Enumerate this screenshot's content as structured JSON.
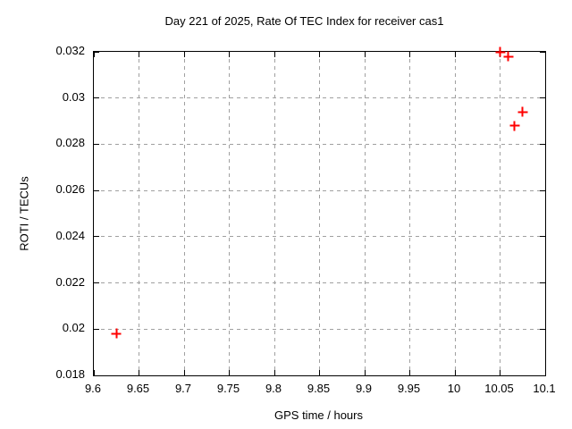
{
  "chart_data": {
    "type": "scatter",
    "title": "Day 221 of 2025, Rate Of TEC Index for receiver cas1",
    "xlabel": "GPS time / hours",
    "ylabel": "ROTI / TECUs",
    "xlim": [
      9.6,
      10.1
    ],
    "ylim": [
      0.018,
      0.032
    ],
    "xticks": [
      9.6,
      9.65,
      9.7,
      9.75,
      9.8,
      9.85,
      9.9,
      9.95,
      10,
      10.05,
      10.1
    ],
    "xtick_labels": [
      "9.6",
      "9.65",
      "9.7",
      "9.75",
      "9.8",
      "9.85",
      "9.9",
      "9.95",
      "10",
      "10.05",
      "10.1"
    ],
    "yticks": [
      0.018,
      0.02,
      0.022,
      0.024,
      0.026,
      0.028,
      0.03,
      0.032
    ],
    "ytick_labels": [
      "0.018",
      "0.02",
      "0.022",
      "0.024",
      "0.026",
      "0.028",
      "0.03",
      "0.032"
    ],
    "grid": true,
    "legend": "none",
    "marker": "plus",
    "marker_color": "#ff0000",
    "grid_color": "#a0a0a0",
    "frame_color": "#000000",
    "background_color": "#ffffff",
    "series": [
      {
        "name": "roti",
        "points": [
          [
            9.625,
            0.0198
          ],
          [
            10.05,
            0.032
          ],
          [
            10.059,
            0.0318
          ],
          [
            10.066,
            0.0288
          ],
          [
            10.075,
            0.0294
          ]
        ]
      }
    ]
  }
}
